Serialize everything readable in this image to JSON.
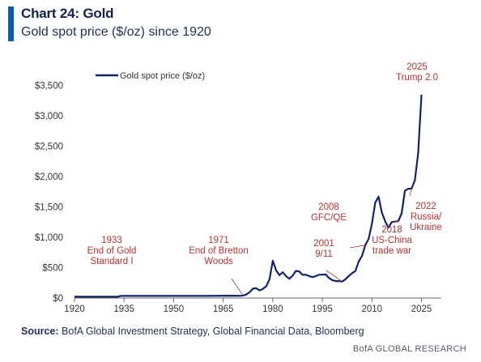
{
  "header": {
    "title": "Chart 24: Gold",
    "subtitle": "Gold spot price ($/oz) since 1920"
  },
  "footer": {
    "source_label": "Source:",
    "source_text": "BofA Global Investment Strategy, Global Financial Data, Bloomberg",
    "brand": "BofA GLOBAL RESEARCH"
  },
  "colors": {
    "line": "#12236a",
    "annotation": "#b8312f",
    "accent": "#0b5cad",
    "axis": "#666666"
  },
  "chart_data": {
    "type": "line",
    "title": "Chart 24: Gold",
    "subtitle": "Gold spot price ($/oz) since 1920",
    "xlim": [
      1920,
      2031
    ],
    "ylim": [
      0,
      3600
    ],
    "x_ticks": [
      1920,
      1935,
      1950,
      1965,
      1980,
      1995,
      2010,
      2025
    ],
    "y_ticks": [
      0,
      500,
      1000,
      1500,
      2000,
      2500,
      3000,
      3500
    ],
    "y_tick_labels": [
      "$0",
      "$500",
      "$1,000",
      "$1,500",
      "$2,000",
      "$2,500",
      "$3,000",
      "$3,500"
    ],
    "grid": false,
    "legend_position": "top-left",
    "series": [
      {
        "name": "Gold spot price ($/oz)",
        "x": [
          1920,
          1933,
          1934,
          1940,
          1950,
          1960,
          1968,
          1970,
          1971,
          1972,
          1973,
          1974,
          1975,
          1976,
          1977,
          1978,
          1979,
          1980,
          1981,
          1982,
          1983,
          1984,
          1985,
          1986,
          1987,
          1988,
          1989,
          1990,
          1991,
          1992,
          1993,
          1994,
          1995,
          1996,
          1997,
          1998,
          1999,
          2000,
          2001,
          2002,
          2003,
          2004,
          2005,
          2006,
          2007,
          2008,
          2009,
          2010,
          2011,
          2012,
          2013,
          2014,
          2015,
          2016,
          2017,
          2018,
          2019,
          2020,
          2021,
          2022,
          2023,
          2024,
          2025
        ],
        "y": [
          21,
          21,
          35,
          35,
          35,
          35,
          39,
          36,
          41,
          58,
          97,
          154,
          161,
          125,
          148,
          193,
          307,
          615,
          460,
          376,
          424,
          361,
          317,
          368,
          447,
          437,
          381,
          384,
          362,
          344,
          360,
          384,
          384,
          388,
          331,
          294,
          279,
          279,
          271,
          310,
          363,
          409,
          444,
          603,
          695,
          871,
          972,
          1224,
          1571,
          1669,
          1411,
          1266,
          1160,
          1251,
          1257,
          1268,
          1393,
          1770,
          1799,
          1801,
          1943,
          2386,
          3350
        ]
      }
    ],
    "annotations": [
      {
        "lines": [
          "1933",
          "End of Gold",
          "Standard I"
        ],
        "x": 1933,
        "y": 21
      },
      {
        "lines": [
          "1971",
          "End of Bretton",
          "Woods"
        ],
        "x": 1971,
        "y": 41
      },
      {
        "lines": [
          "2001",
          "9/11"
        ],
        "x": 2001,
        "y": 271
      },
      {
        "lines": [
          "2008",
          "GFC/QE"
        ],
        "x": 2008,
        "y": 871
      },
      {
        "lines": [
          "2018",
          "US-China",
          "trade war"
        ],
        "x": 2018,
        "y": 1268
      },
      {
        "lines": [
          "2022",
          "Russia/",
          "Ukraine"
        ],
        "x": 2022,
        "y": 1801
      },
      {
        "lines": [
          "2025",
          "Trump 2.0"
        ],
        "x": 2025,
        "y": 3350
      }
    ]
  }
}
